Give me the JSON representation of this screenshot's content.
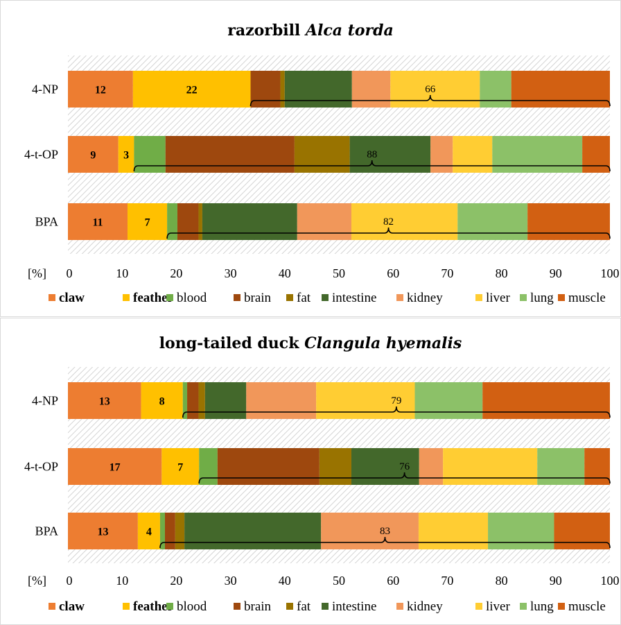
{
  "chart_data": [
    {
      "type": "bar",
      "orientation": "horizontal",
      "stacked": true,
      "title": "razorbill",
      "title_italic": "Alca torda",
      "xlabel": "[%]",
      "xlim": [
        0,
        100
      ],
      "xticks": [
        0,
        10,
        20,
        30,
        40,
        50,
        60,
        70,
        80,
        90,
        100
      ],
      "categories": [
        "4-NP",
        "4-t-OP",
        "BPA"
      ],
      "series": [
        {
          "name": "claw",
          "values": [
            12,
            9.3,
            11
          ]
        },
        {
          "name": "feather",
          "values": [
            21.7,
            2.9,
            7.3
          ]
        },
        {
          "name": "blood",
          "values": [
            0,
            5.8,
            1.9
          ]
        },
        {
          "name": "brain",
          "values": [
            5.5,
            23.8,
            3.9
          ]
        },
        {
          "name": "fat",
          "values": [
            0.8,
            10.2,
            0.7
          ]
        },
        {
          "name": "intestine",
          "values": [
            12.4,
            14.9,
            17.5
          ]
        },
        {
          "name": "kidney",
          "values": [
            7.1,
            4.1,
            10
          ]
        },
        {
          "name": "liver",
          "values": [
            16.5,
            7.3,
            19.6
          ]
        },
        {
          "name": "lung",
          "values": [
            5.8,
            16.6,
            12.9
          ]
        },
        {
          "name": "muscle",
          "values": [
            18.2,
            5.1,
            15.2
          ]
        }
      ],
      "labels": [
        {
          "category": 0,
          "series": 0,
          "text": "12"
        },
        {
          "category": 0,
          "series": 1,
          "text": "22"
        },
        {
          "category": 1,
          "series": 0,
          "text": "9"
        },
        {
          "category": 1,
          "series": 1,
          "text": "3"
        },
        {
          "category": 2,
          "series": 0,
          "text": "11"
        },
        {
          "category": 2,
          "series": 1,
          "text": "7"
        }
      ],
      "braces": [
        {
          "category": 0,
          "from": 33.7,
          "to": 100,
          "text": "66"
        },
        {
          "category": 1,
          "from": 12.2,
          "to": 100,
          "text": "88"
        },
        {
          "category": 2,
          "from": 18.3,
          "to": 100,
          "text": "82"
        }
      ]
    },
    {
      "type": "bar",
      "orientation": "horizontal",
      "stacked": true,
      "title": "long-tailed duck",
      "title_italic": "Clangula hyemalis",
      "xlabel": "[%]",
      "xlim": [
        0,
        100
      ],
      "xticks": [
        0,
        10,
        20,
        30,
        40,
        50,
        60,
        70,
        80,
        90,
        100
      ],
      "categories": [
        "4-NP",
        "4-t-OP",
        "BPA"
      ],
      "series": [
        {
          "name": "claw",
          "values": [
            13.5,
            17.3,
            12.9
          ]
        },
        {
          "name": "feather",
          "values": [
            7.7,
            6.9,
            4.1
          ]
        },
        {
          "name": "blood",
          "values": [
            0.8,
            3.4,
            0.9
          ]
        },
        {
          "name": "brain",
          "values": [
            2.1,
            18.8,
            1.9
          ]
        },
        {
          "name": "fat",
          "values": [
            1.2,
            5.9,
            1.7
          ]
        },
        {
          "name": "intestine",
          "values": [
            7.6,
            12.5,
            25.2
          ]
        },
        {
          "name": "kidney",
          "values": [
            12.9,
            4.4,
            18
          ]
        },
        {
          "name": "liver",
          "values": [
            18.2,
            17.4,
            12.8
          ]
        },
        {
          "name": "lung",
          "values": [
            12.5,
            8.7,
            12.2
          ]
        },
        {
          "name": "muscle",
          "values": [
            23.5,
            4.7,
            10.3
          ]
        }
      ],
      "labels": [
        {
          "category": 0,
          "series": 0,
          "text": "13"
        },
        {
          "category": 0,
          "series": 1,
          "text": "8"
        },
        {
          "category": 1,
          "series": 0,
          "text": "17"
        },
        {
          "category": 1,
          "series": 1,
          "text": "7"
        },
        {
          "category": 2,
          "series": 0,
          "text": "13"
        },
        {
          "category": 2,
          "series": 1,
          "text": "4"
        }
      ],
      "braces": [
        {
          "category": 0,
          "from": 21.2,
          "to": 100,
          "text": "79"
        },
        {
          "category": 1,
          "from": 24.2,
          "to": 100,
          "text": "76"
        },
        {
          "category": 2,
          "from": 17,
          "to": 100,
          "text": "83"
        }
      ]
    }
  ],
  "legend": {
    "placement": "bottom",
    "items": [
      {
        "name": "claw",
        "color": "#ED7D31",
        "bold": true
      },
      {
        "name": "feather",
        "color": "#FFC000",
        "bold": true
      },
      {
        "name": "blood",
        "color": "#70AD47",
        "bold": false
      },
      {
        "name": "brain",
        "color": "#9E480E",
        "bold": false
      },
      {
        "name": "fat",
        "color": "#997300",
        "bold": false
      },
      {
        "name": "intestine",
        "color": "#43682B",
        "bold": false
      },
      {
        "name": "kidney",
        "color": "#F1975A",
        "bold": false
      },
      {
        "name": "liver",
        "color": "#FFCD33",
        "bold": false
      },
      {
        "name": "lung",
        "color": "#8CC168",
        "bold": false
      },
      {
        "name": "muscle",
        "color": "#D26012",
        "bold": false
      }
    ]
  },
  "colors": {
    "gap_hatch": "#d4d4d4",
    "panel_border": "#d9d9d9",
    "brace": "#000000"
  }
}
